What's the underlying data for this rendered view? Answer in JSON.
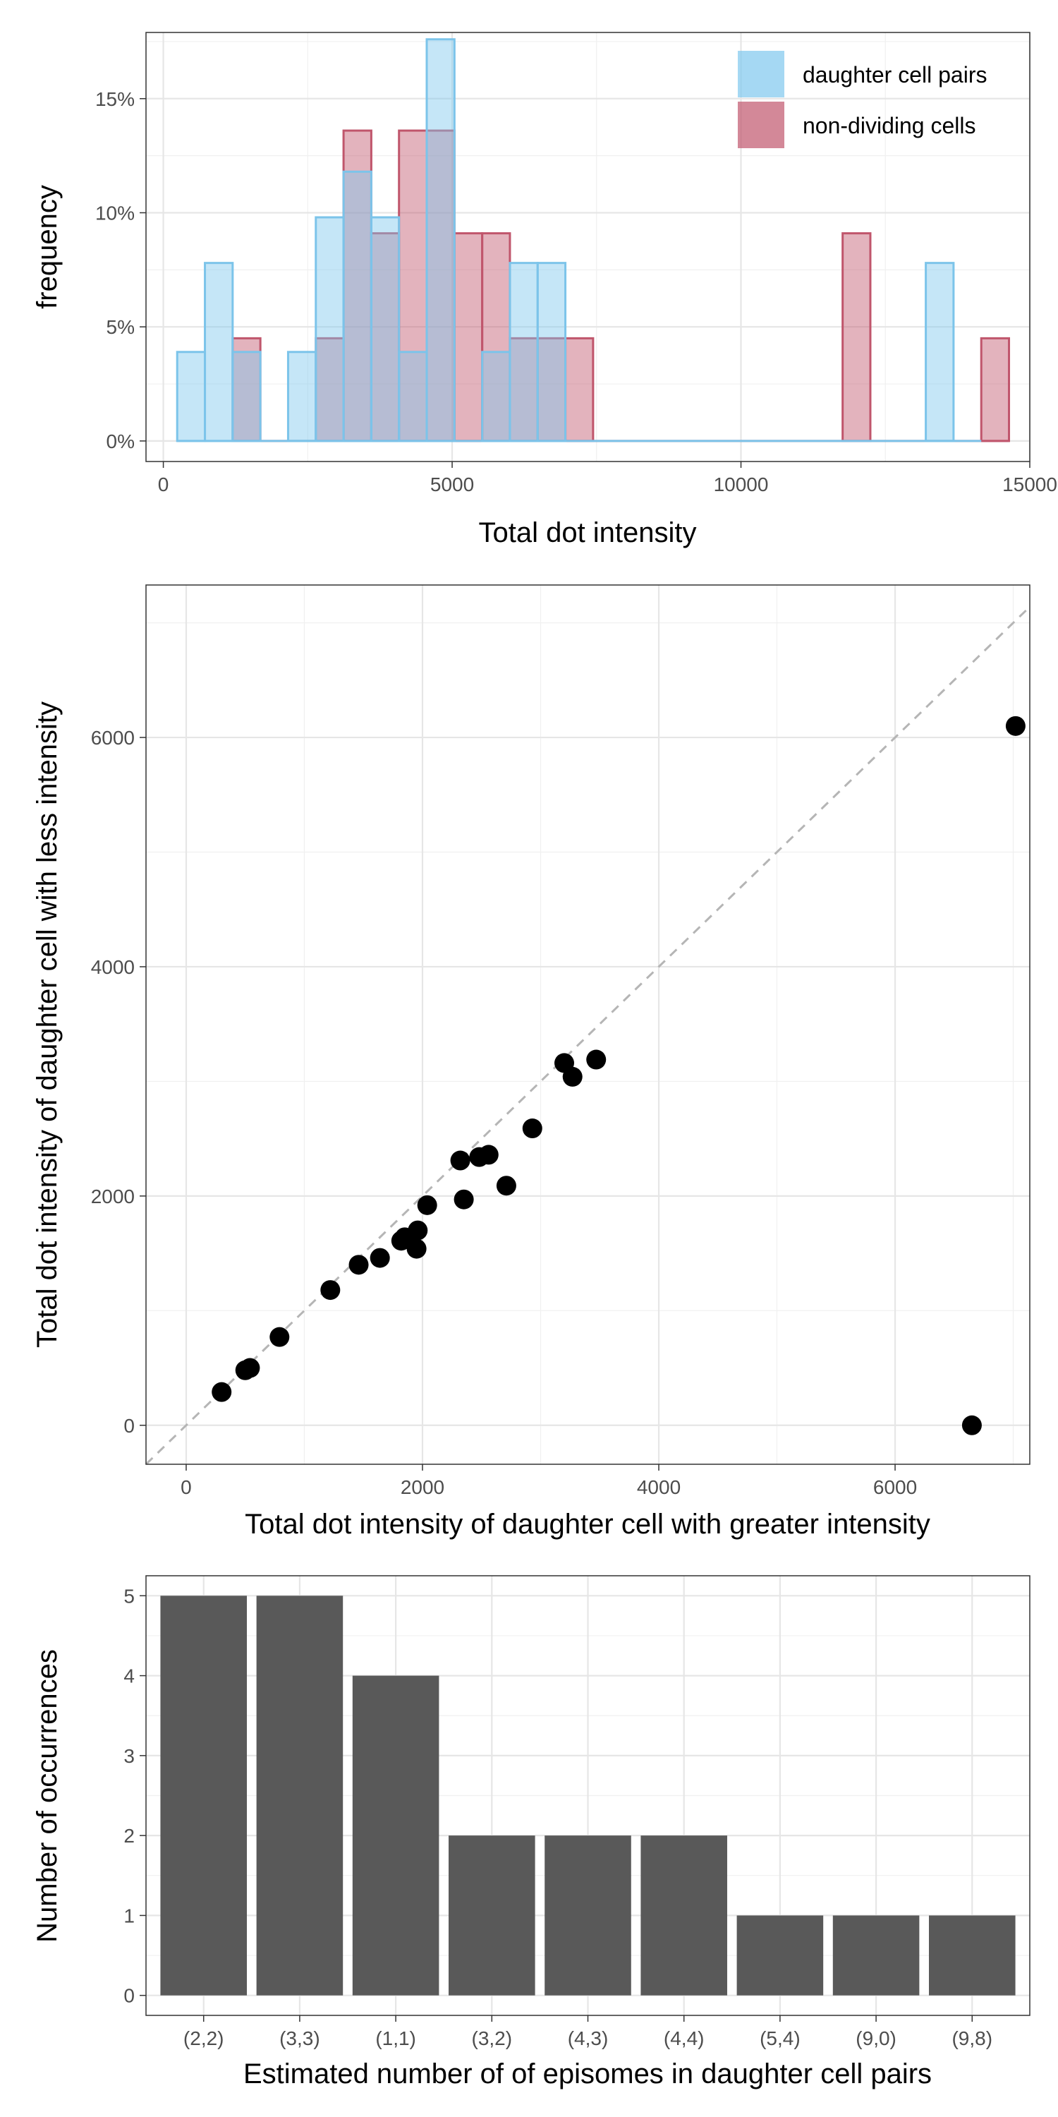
{
  "colors": {
    "daughter": "#7FC8EE",
    "daughter_line": "#7CC4EA",
    "nondividing": "#C0566C",
    "nondividing_line": "#C0566C",
    "point": "#000000",
    "bar": "#595959",
    "diag": "#b5b5b5"
  },
  "chart_data": [
    {
      "type": "histogram",
      "title": "",
      "xlabel": "Total dot intensity",
      "ylabel": "frequency",
      "xlim": [
        -300,
        15000
      ],
      "ylim": [
        -0.9,
        17.9
      ],
      "xticks": [
        0,
        5000,
        10000,
        15000
      ],
      "xtick_labels": [
        "0",
        "5000",
        "10000",
        "15000"
      ],
      "yticks": [
        0,
        5,
        10,
        15
      ],
      "ytick_labels": [
        "0%",
        "5%",
        "10%",
        "15%"
      ],
      "bin_width": 480,
      "legend": [
        "daughter cell pairs",
        "non-dividing cells"
      ],
      "legend_position": "top-right",
      "series": [
        {
          "name": "daughter cell pairs",
          "bin_centers": [
            480,
            960,
            1440,
            1920,
            2400,
            2880,
            3360,
            3840,
            4320,
            4800,
            5280,
            5760,
            6240,
            6720,
            7200,
            7680,
            8160,
            8640,
            9120,
            9600,
            10080,
            10560,
            11040,
            11520,
            12000,
            12480,
            12960,
            13440,
            13920
          ],
          "values": [
            3.9,
            7.8,
            3.9,
            0,
            3.9,
            9.8,
            11.8,
            9.8,
            3.9,
            17.6,
            0,
            3.9,
            7.8,
            7.8,
            0,
            0,
            0,
            0,
            0,
            0,
            0,
            0,
            0,
            0,
            0,
            0,
            0,
            7.8,
            0
          ]
        },
        {
          "name": "non-dividing cells",
          "bin_centers": [
            1440,
            1920,
            2400,
            2880,
            3360,
            3840,
            4320,
            4800,
            5280,
            5760,
            6240,
            6720,
            7200,
            7680,
            8160,
            8640,
            9120,
            9600,
            10080,
            10560,
            11040,
            11520,
            12000,
            12480,
            12960,
            13440,
            13920,
            14400
          ],
          "values": [
            4.5,
            0,
            0,
            4.5,
            13.6,
            9.1,
            13.6,
            13.6,
            9.1,
            9.1,
            4.5,
            4.5,
            4.5,
            0,
            0,
            0,
            0,
            0,
            0,
            0,
            0,
            0,
            9.1,
            0,
            0,
            0,
            0,
            4.5
          ]
        }
      ]
    },
    {
      "type": "scatter",
      "title": "",
      "xlabel": "Total dot intensity of daughter cell with greater intensity",
      "ylabel": "Total dot intensity of daughter cell with less intensity",
      "xlim": [
        -340,
        7140
      ],
      "ylim": [
        -340,
        7330
      ],
      "xticks": [
        0,
        2000,
        4000,
        6000
      ],
      "xtick_labels": [
        "0",
        "2000",
        "4000",
        "6000"
      ],
      "yticks": [
        0,
        2000,
        4000,
        6000
      ],
      "ytick_labels": [
        "0",
        "2000",
        "4000",
        "6000"
      ],
      "reference_line": "y = x (dashed)",
      "x": [
        7020,
        6650,
        3470,
        3200,
        3270,
        2930,
        2560,
        2480,
        2320,
        2350,
        2710,
        2040,
        1960,
        1950,
        1850,
        1820,
        1640,
        1460,
        1220,
        790,
        540,
        500,
        300
      ],
      "y": [
        6100,
        0,
        3190,
        3160,
        3040,
        2590,
        2360,
        2340,
        2310,
        1970,
        2090,
        1920,
        1700,
        1540,
        1640,
        1610,
        1460,
        1400,
        1180,
        770,
        500,
        480,
        290
      ]
    },
    {
      "type": "bar",
      "title": "",
      "xlabel": "Estimated number of of episomes in daughter cell pairs",
      "ylabel": "Number of occurrences",
      "categories": [
        "(2,2)",
        "(3,3)",
        "(1,1)",
        "(3,2)",
        "(4,3)",
        "(4,4)",
        "(5,4)",
        "(9,0)",
        "(9,8)"
      ],
      "values": [
        5,
        5,
        4,
        2,
        2,
        2,
        1,
        1,
        1
      ],
      "ylim": [
        -0.25,
        5.25
      ],
      "yticks": [
        0,
        1,
        2,
        3,
        4,
        5
      ],
      "ytick_labels": [
        "0",
        "1",
        "2",
        "3",
        "4",
        "5"
      ]
    }
  ]
}
